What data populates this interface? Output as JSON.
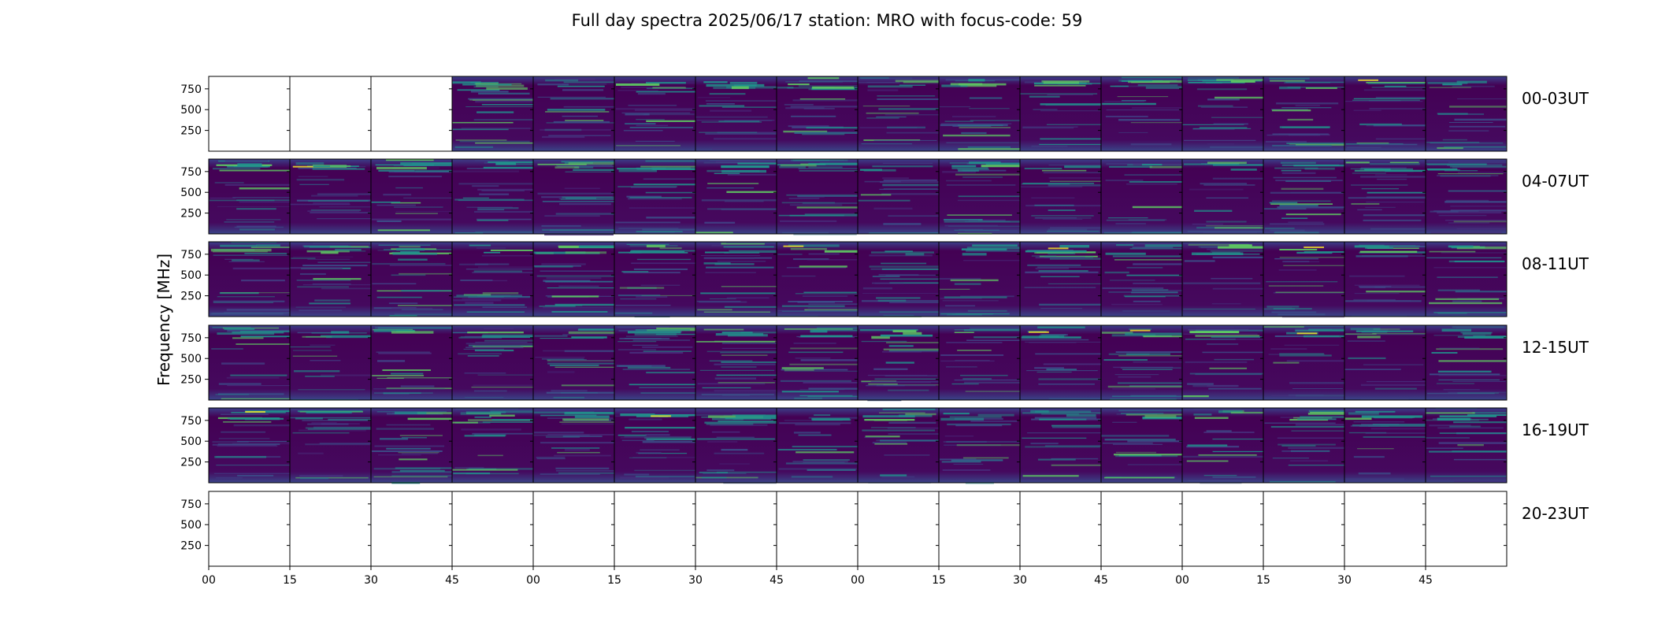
{
  "chart_data": {
    "type": "heatmap",
    "title": "Full day spectra 2025/06/17 station: MRO with focus-code: 59",
    "ylabel": "Frequency [MHz]",
    "ylim": [
      0,
      900
    ],
    "yticks": [
      "250",
      "500",
      "750"
    ],
    "ytick_values": [
      250,
      500,
      750
    ],
    "xticks": [
      "00",
      "15",
      "30",
      "45",
      "00",
      "15",
      "30",
      "45",
      "00",
      "15",
      "30",
      "45",
      "00",
      "15",
      "30",
      "45"
    ],
    "colormap": "viridis",
    "colors": {
      "background_low": "#440154",
      "mid": "#3b528b",
      "teal": "#21918c",
      "green": "#5ec962",
      "high": "#fde725"
    },
    "rows": [
      {
        "label": "00-03UT",
        "panels_with_data": [
          0,
          0,
          0,
          1,
          1,
          1,
          1,
          1,
          1,
          1,
          1,
          1,
          1,
          1,
          1,
          1
        ]
      },
      {
        "label": "04-07UT",
        "panels_with_data": [
          1,
          1,
          1,
          1,
          1,
          1,
          1,
          1,
          1,
          1,
          1,
          1,
          1,
          1,
          1,
          1
        ]
      },
      {
        "label": "08-11UT",
        "panels_with_data": [
          1,
          1,
          1,
          1,
          1,
          1,
          1,
          1,
          1,
          1,
          1,
          1,
          1,
          1,
          1,
          1
        ]
      },
      {
        "label": "12-15UT",
        "panels_with_data": [
          1,
          1,
          1,
          1,
          1,
          1,
          1,
          1,
          1,
          1,
          1,
          1,
          1,
          1,
          1,
          1
        ]
      },
      {
        "label": "16-19UT",
        "panels_with_data": [
          1,
          1,
          1,
          1,
          1,
          1,
          1,
          1,
          1,
          1,
          1,
          1,
          1,
          1,
          1,
          1
        ]
      },
      {
        "label": "20-23UT",
        "panels_with_data": [
          0,
          0,
          0,
          0,
          0,
          0,
          0,
          0,
          0,
          0,
          0,
          0,
          0,
          0,
          0,
          0
        ]
      }
    ]
  }
}
